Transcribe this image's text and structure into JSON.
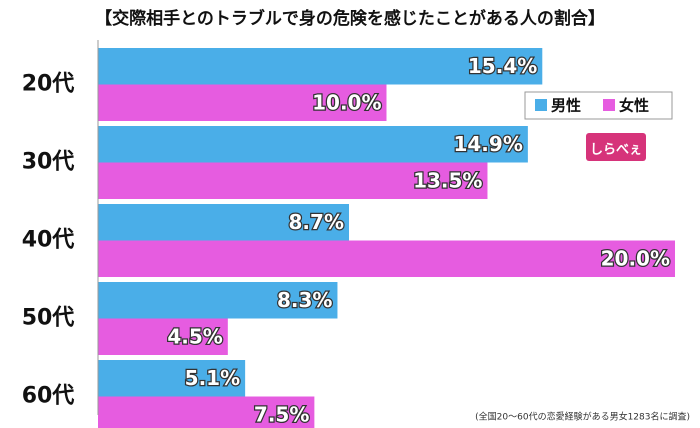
{
  "chart_data": {
    "type": "hbar",
    "title": "【交際相手とのトラブルで身の危険を感じたことがある人の割合】",
    "categories": [
      "20代",
      "30代",
      "40代",
      "50代",
      "60代"
    ],
    "series": [
      {
        "name": "男性",
        "color": "#4aaee8",
        "values": [
          15.4,
          14.9,
          8.7,
          8.3,
          5.1
        ],
        "value_labels": [
          "15.4%",
          "14.9%",
          "8.7%",
          "8.3%",
          "5.1%"
        ]
      },
      {
        "name": "女性",
        "color": "#e65ce0",
        "values": [
          10.0,
          13.5,
          20.0,
          4.5,
          7.5
        ],
        "value_labels": [
          "10.0%",
          "13.5%",
          "20.0%",
          "4.5%",
          "7.5%"
        ]
      }
    ],
    "legend": "upper right",
    "logo": "しらべぇ",
    "footnote": "(全国20〜60代の恋愛経験がある男女1283名に調査)"
  }
}
